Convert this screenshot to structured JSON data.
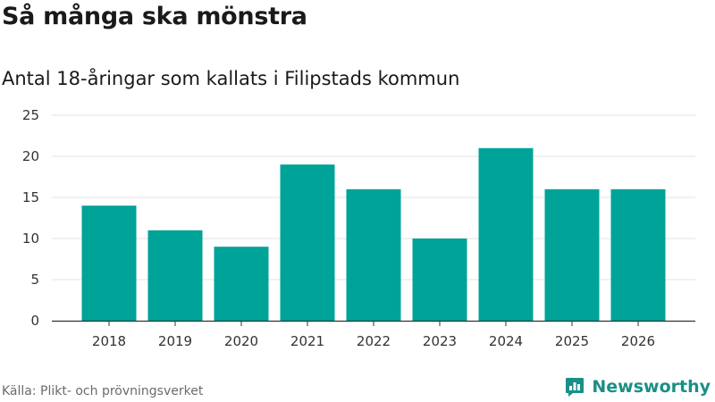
{
  "header": {
    "title": "Så många ska mönstra",
    "subtitle": "Antal 18-åringar som kallats i Filipstads kommun"
  },
  "footer": {
    "source": "Källa: Plikt- och prövningsverket",
    "brand": "Newsworthy"
  },
  "colors": {
    "bar": "#00a398",
    "grid": "#e3e3e3",
    "axis": "#333333",
    "brand": "#1b8f86"
  },
  "chart_data": {
    "type": "bar",
    "title": "Så många ska mönstra",
    "subtitle": "Antal 18-åringar som kallats i Filipstads kommun",
    "xlabel": "",
    "ylabel": "",
    "categories": [
      "2018",
      "2019",
      "2020",
      "2021",
      "2022",
      "2023",
      "2024",
      "2025",
      "2026"
    ],
    "values": [
      14,
      11,
      9,
      19,
      16,
      10,
      21,
      16,
      16
    ],
    "ylim": [
      0,
      25
    ],
    "yticks": [
      0,
      5,
      10,
      15,
      20,
      25
    ],
    "grid": true,
    "legend": "none"
  }
}
